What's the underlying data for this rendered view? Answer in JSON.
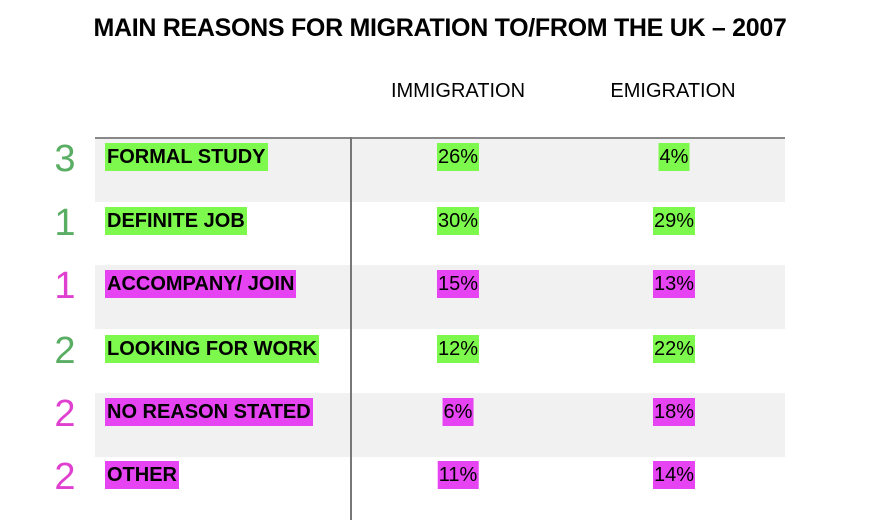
{
  "title": "MAIN REASONS FOR MIGRATION TO/FROM THE UK – 2007",
  "columns": [
    "IMMIGRATION",
    "EMIGRATION"
  ],
  "colors": {
    "green_highlight": "#7df94e",
    "magenta_highlight": "#e643f2",
    "green_rank": "#5aae64",
    "magenta_rank": "#e040d0"
  },
  "rows": [
    {
      "rank": "3",
      "reason": "FORMAL STUDY",
      "immigration": "26%",
      "emigration": "4%",
      "color": "green"
    },
    {
      "rank": "1",
      "reason": "DEFINITE JOB",
      "immigration": "30%",
      "emigration": "29%",
      "color": "green"
    },
    {
      "rank": "1",
      "reason": "ACCOMPANY/ JOIN",
      "immigration": "15%",
      "emigration": "13%",
      "color": "magenta"
    },
    {
      "rank": "2",
      "reason": "LOOKING FOR WORK",
      "immigration": "12%",
      "emigration": "22%",
      "color": "green"
    },
    {
      "rank": "2",
      "reason": "NO REASON STATED",
      "immigration": "6%",
      "emigration": "18%",
      "color": "magenta"
    },
    {
      "rank": "2",
      "reason": "OTHER",
      "immigration": "11%",
      "emigration": "14%",
      "color": "magenta"
    }
  ]
}
